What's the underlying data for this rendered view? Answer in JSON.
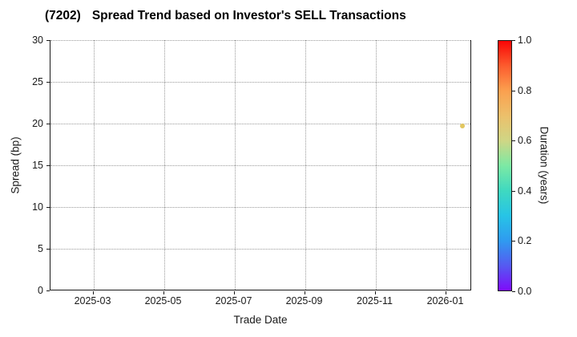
{
  "chart": {
    "title_ticker": "(7202)",
    "title_text": "Spread Trend based on Investor's SELL Transactions"
  },
  "chart_data": {
    "type": "scatter",
    "title": "(7202)  Spread Trend based on Investor's SELL Transactions",
    "xlabel": "Trade Date",
    "ylabel": "Spread (bp)",
    "x_tick_labels": [
      "2025-03",
      "2025-05",
      "2025-07",
      "2025-09",
      "2025-11",
      "2026-01"
    ],
    "y_ticks": [
      0,
      5,
      10,
      15,
      20,
      25,
      30
    ],
    "ylim": [
      0,
      30
    ],
    "grid": true,
    "grid_style": "dotted",
    "points": [
      {
        "trade_date": "2026-01-15",
        "spread_bp": 19.7,
        "duration_years": 0.68,
        "color": "#e2c65f"
      }
    ],
    "colorbar": {
      "label": "Duration (years)",
      "ticks": [
        "0.0",
        "0.2",
        "0.4",
        "0.6",
        "0.8",
        "1.0"
      ],
      "range": [
        0,
        1
      ],
      "colormap": "rainbow",
      "gradient_stops": [
        {
          "value": 0.0,
          "color": "#7e0cfa"
        },
        {
          "value": 0.1,
          "color": "#555af1"
        },
        {
          "value": 0.2,
          "color": "#2f9bf0"
        },
        {
          "value": 0.3,
          "color": "#27c4e6"
        },
        {
          "value": 0.4,
          "color": "#3fd9c0"
        },
        {
          "value": 0.5,
          "color": "#7ce9a4"
        },
        {
          "value": 0.6,
          "color": "#cfd685"
        },
        {
          "value": 0.7,
          "color": "#ecc06b"
        },
        {
          "value": 0.8,
          "color": "#fba04f"
        },
        {
          "value": 0.9,
          "color": "#fc5c2e"
        },
        {
          "value": 1.0,
          "color": "#f90606"
        }
      ]
    }
  }
}
